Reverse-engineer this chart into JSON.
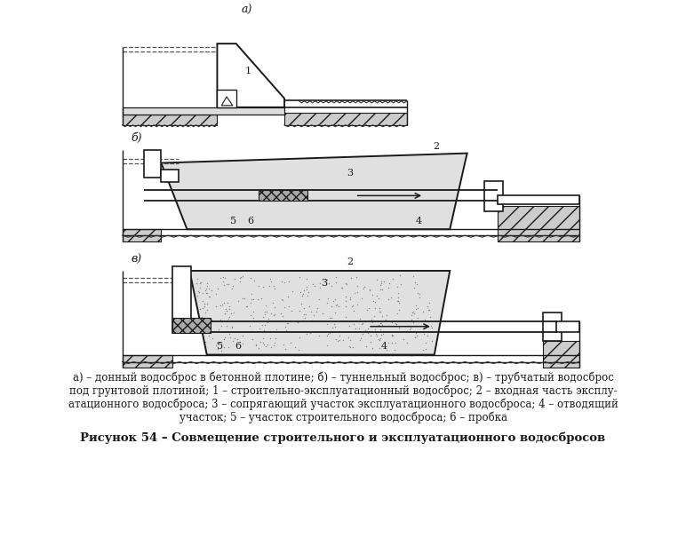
{
  "bg_color": "#ffffff",
  "line_color": "#1a1a1a",
  "title": "Рисунок 54 – Совмещение строительного и эксплуатационного водосбросов",
  "caption_line1": "а) – донный водосброс в бетонной плотине; б) – туннельный водосброс; в) – трубчатый водосброс",
  "caption_line2": "под грунтовой плотиной; 1 – строительно-эксплуатационный водосброс; 2 – входная часть эксплу-",
  "caption_line3": "атационного водосброса; 3 – сопрягающий участок эксплуатационного водосброса; 4 – отводящий",
  "caption_line4": "участок; 5 – участок строительного водосброса; 6 – пробка"
}
